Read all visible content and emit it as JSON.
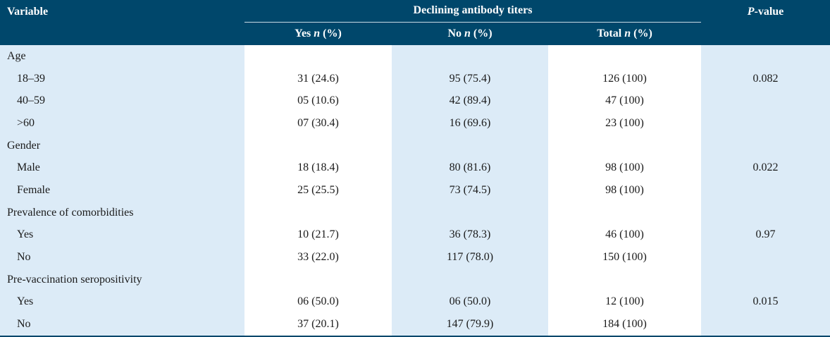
{
  "header": {
    "variable": "Variable",
    "group": "Declining antibody titers",
    "p_value_italic": "P",
    "p_value_rest": "-value",
    "sub": {
      "yes": "Yes ",
      "no": "No ",
      "total": "Total ",
      "n_italic": "n",
      "pct": " (%)"
    }
  },
  "rows": [
    {
      "label": "Age",
      "yes": "",
      "no": "",
      "total": "",
      "p": "",
      "indent": false
    },
    {
      "label": "18–39",
      "yes": "31 (24.6)",
      "no": "95 (75.4)",
      "total": "126 (100)",
      "p": "0.082",
      "indent": true
    },
    {
      "label": "40–59",
      "yes": "05 (10.6)",
      "no": "42 (89.4)",
      "total": "47 (100)",
      "p": "",
      "indent": true
    },
    {
      "label": ">60",
      "yes": "07 (30.4)",
      "no": "16 (69.6)",
      "total": "23 (100)",
      "p": "",
      "indent": true
    },
    {
      "label": "Gender",
      "yes": "",
      "no": "",
      "total": "",
      "p": "",
      "indent": false
    },
    {
      "label": "Male",
      "yes": "18 (18.4)",
      "no": "80 (81.6)",
      "total": "98 (100)",
      "p": "0.022",
      "indent": true
    },
    {
      "label": "Female",
      "yes": "25 (25.5)",
      "no": "73 (74.5)",
      "total": "98 (100)",
      "p": "",
      "indent": true
    },
    {
      "label": "Prevalence of comorbidities",
      "yes": "",
      "no": "",
      "total": "",
      "p": "",
      "indent": false
    },
    {
      "label": "Yes",
      "yes": "10 (21.7)",
      "no": "36 (78.3)",
      "total": "46 (100)",
      "p": "0.97",
      "indent": true
    },
    {
      "label": "No",
      "yes": "33 (22.0)",
      "no": "117 (78.0)",
      "total": "150 (100)",
      "p": "",
      "indent": true
    },
    {
      "label": "Pre-vaccination seropositivity",
      "yes": "",
      "no": "",
      "total": "",
      "p": "",
      "indent": false
    },
    {
      "label": "Yes",
      "yes": "06 (50.0)",
      "no": "06 (50.0)",
      "total": "12 (100)",
      "p": "0.015",
      "indent": true
    },
    {
      "label": "No",
      "yes": "37 (20.1)",
      "no": "147 (79.9)",
      "total": "184 (100)",
      "p": "",
      "indent": true
    }
  ]
}
